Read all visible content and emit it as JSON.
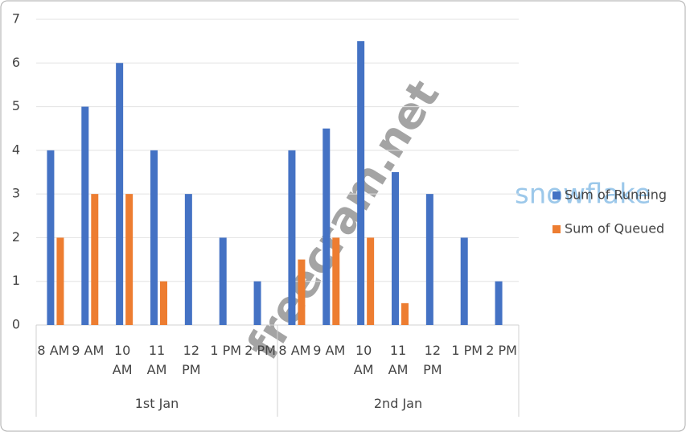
{
  "chart_data": {
    "type": "bar",
    "category_groups": [
      "1st Jan",
      "2nd Jan"
    ],
    "categories": [
      "8 AM",
      "9 AM",
      "10 AM",
      "11 AM",
      "12 PM",
      "1 PM",
      "2 PM",
      "8 AM",
      "9 AM",
      "10 AM",
      "11 AM",
      "12 PM",
      "1 PM",
      "2 PM"
    ],
    "series": [
      {
        "name": "Sum of Running",
        "color": "#4472c4",
        "values": [
          4,
          5,
          6,
          4,
          3,
          2,
          1,
          4,
          4.5,
          6.5,
          3.5,
          3,
          2,
          1
        ]
      },
      {
        "name": "Sum of Queued",
        "color": "#ed7d31",
        "values": [
          2,
          3,
          3,
          1,
          0,
          0,
          0,
          1.5,
          2,
          2,
          0.5,
          0,
          0,
          0
        ]
      }
    ],
    "ylim": [
      0,
      7
    ],
    "yticks": [
      0,
      1,
      2,
      3,
      4,
      5,
      6,
      7
    ],
    "grid": true,
    "legend": "right",
    "watermark": "freecram.net",
    "logo_text": "snowflake"
  }
}
